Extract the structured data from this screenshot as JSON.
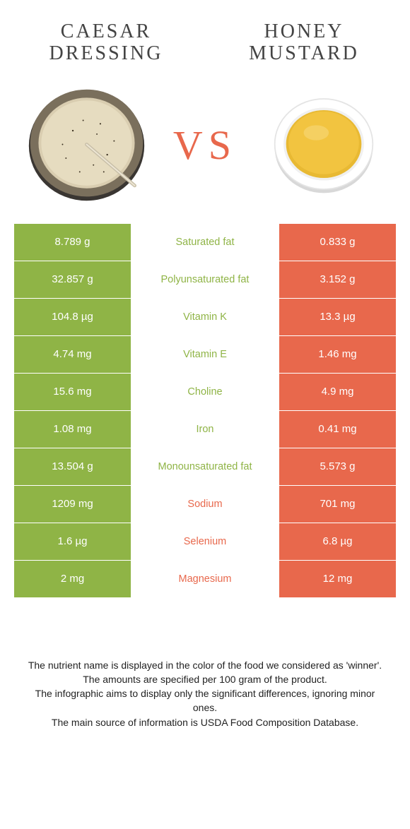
{
  "colors": {
    "left": "#8fb446",
    "right": "#e8684c",
    "vs": "#e8684c",
    "bg": "#ffffff"
  },
  "header": {
    "left_title_l1": "CAESAR",
    "left_title_l2": "DRESSING",
    "right_title_l1": "HONEY",
    "right_title_l2": "MUSTARD",
    "vs": "VS"
  },
  "rows": [
    {
      "left": "8.789 g",
      "name": "Saturated fat",
      "right": "0.833 g",
      "winner": "left"
    },
    {
      "left": "32.857 g",
      "name": "Polyunsaturated fat",
      "right": "3.152 g",
      "winner": "left"
    },
    {
      "left": "104.8 µg",
      "name": "Vitamin K",
      "right": "13.3 µg",
      "winner": "left"
    },
    {
      "left": "4.74 mg",
      "name": "Vitamin E",
      "right": "1.46 mg",
      "winner": "left"
    },
    {
      "left": "15.6 mg",
      "name": "Choline",
      "right": "4.9 mg",
      "winner": "left"
    },
    {
      "left": "1.08 mg",
      "name": "Iron",
      "right": "0.41 mg",
      "winner": "left"
    },
    {
      "left": "13.504 g",
      "name": "Monounsaturated fat",
      "right": "5.573 g",
      "winner": "left"
    },
    {
      "left": "1209 mg",
      "name": "Sodium",
      "right": "701 mg",
      "winner": "right"
    },
    {
      "left": "1.6 µg",
      "name": "Selenium",
      "right": "6.8 µg",
      "winner": "right"
    },
    {
      "left": "2 mg",
      "name": "Magnesium",
      "right": "12 mg",
      "winner": "right"
    }
  ],
  "footer": {
    "l1": "The nutrient name is displayed in the color of the food we considered as 'winner'.",
    "l2": "The amounts are specified per 100 gram of the product.",
    "l3": "The infographic aims to display only the significant differences, ignoring minor ones.",
    "l4": "The main source of information is USDA Food Composition Database."
  }
}
